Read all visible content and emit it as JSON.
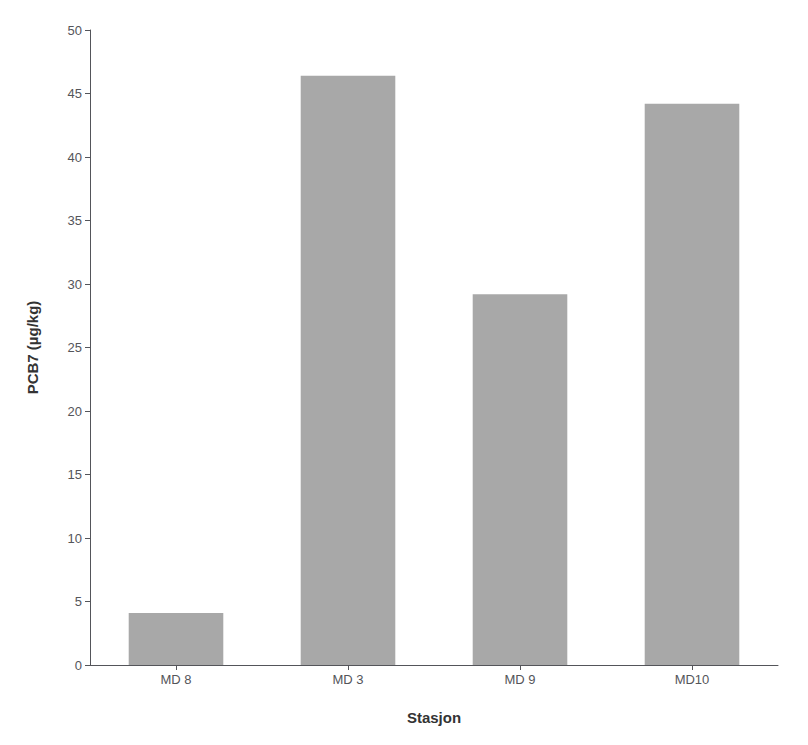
{
  "chart_data": {
    "type": "bar",
    "categories": [
      "MD 8",
      "MD 3",
      "MD 9",
      "MD10"
    ],
    "values": [
      4.1,
      46.4,
      29.2,
      44.2
    ],
    "color": "#a8a8a8",
    "xlabel": "Stasjon",
    "ylabel": "PCB7 (µg/kg)",
    "ylim": [
      0,
      50
    ],
    "yticks": [
      0,
      5,
      10,
      15,
      20,
      25,
      30,
      35,
      40,
      45,
      50
    ],
    "grid": false
  }
}
